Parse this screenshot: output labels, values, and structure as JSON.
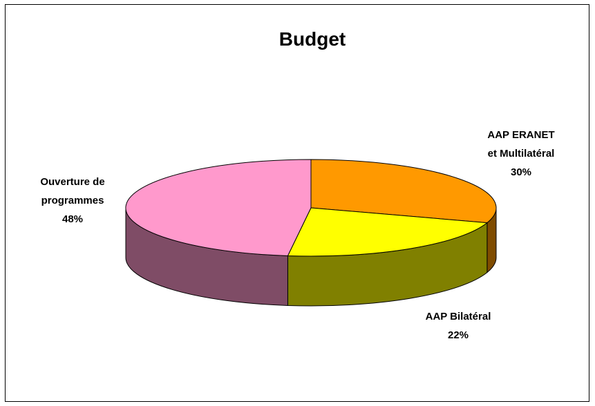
{
  "chart_data": {
    "type": "pie",
    "title": "Budget",
    "three_d": true,
    "slices": [
      {
        "label_lines": [
          "AAP ERANET",
          "et Multilatéral"
        ],
        "percent_label": "30%",
        "value": 30,
        "color": "#FF9900",
        "side_color": "#7F4C00"
      },
      {
        "label_lines": [
          "AAP Bilatéral"
        ],
        "percent_label": "22%",
        "value": 22,
        "color": "#FFFF00",
        "side_color": "#808000"
      },
      {
        "label_lines": [
          "Ouverture de",
          "programmes"
        ],
        "percent_label": "48%",
        "value": 48,
        "color": "#FF99CC",
        "side_color": "#7F4C66"
      }
    ]
  }
}
